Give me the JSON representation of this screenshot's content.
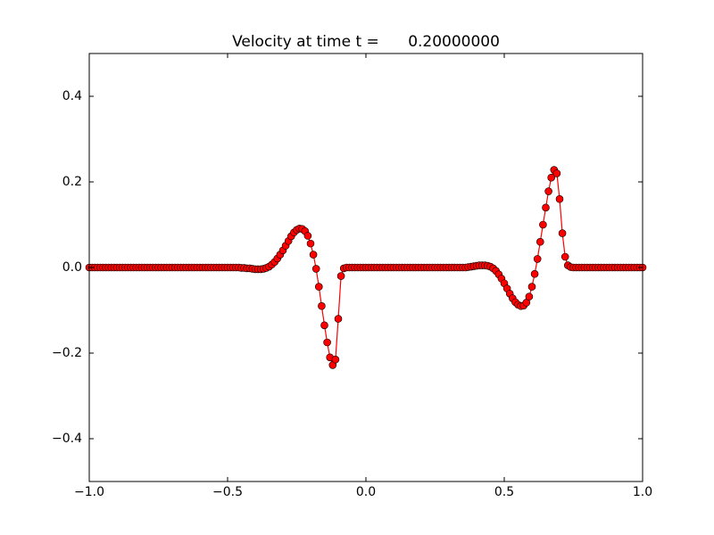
{
  "chart_data": {
    "type": "line",
    "title": "Velocity at time t =      0.20000000",
    "x": [
      -1,
      -0.99,
      -0.98,
      -0.97,
      -0.96,
      -0.95,
      -0.94,
      -0.93,
      -0.92,
      -0.91,
      -0.9,
      -0.89,
      -0.88,
      -0.87,
      -0.86,
      -0.85,
      -0.84,
      -0.83,
      -0.82,
      -0.81,
      -0.8,
      -0.79,
      -0.78,
      -0.77,
      -0.76,
      -0.75,
      -0.74,
      -0.73,
      -0.72,
      -0.71,
      -0.7,
      -0.69,
      -0.68,
      -0.67,
      -0.66,
      -0.65,
      -0.64,
      -0.63,
      -0.62,
      -0.61,
      -0.6,
      -0.59,
      -0.58,
      -0.57,
      -0.56,
      -0.55,
      -0.54,
      -0.53,
      -0.52,
      -0.51,
      -0.5,
      -0.49,
      -0.48,
      -0.47,
      -0.46,
      -0.45,
      -0.44,
      -0.43,
      -0.42,
      -0.41,
      -0.4,
      -0.39,
      -0.38,
      -0.37,
      -0.36,
      -0.35,
      -0.34,
      -0.33,
      -0.32,
      -0.31,
      -0.3,
      -0.29,
      -0.28,
      -0.27,
      -0.26,
      -0.25,
      -0.24,
      -0.23,
      -0.22,
      -0.21,
      -0.2,
      -0.19,
      -0.18,
      -0.17,
      -0.16,
      -0.15,
      -0.14,
      -0.13,
      -0.12,
      -0.11,
      -0.1,
      -0.09,
      -0.08,
      -0.07,
      -0.06,
      -0.05,
      -0.04,
      -0.03,
      -0.02,
      -0.01,
      0,
      0.01,
      0.02,
      0.03,
      0.04,
      0.05,
      0.06,
      0.07,
      0.08,
      0.09,
      0.1,
      0.11,
      0.12,
      0.13,
      0.14,
      0.15,
      0.16,
      0.17,
      0.18,
      0.19,
      0.2,
      0.21,
      0.22,
      0.23,
      0.24,
      0.25,
      0.26,
      0.27,
      0.28,
      0.29,
      0.3,
      0.31,
      0.32,
      0.33,
      0.34,
      0.35,
      0.36,
      0.37,
      0.38,
      0.39,
      0.4,
      0.41,
      0.42,
      0.43,
      0.44,
      0.45,
      0.46,
      0.47,
      0.48,
      0.49,
      0.5,
      0.51,
      0.52,
      0.53,
      0.54,
      0.55,
      0.56,
      0.57,
      0.58,
      0.59,
      0.6,
      0.61,
      0.62,
      0.63,
      0.64,
      0.65,
      0.66,
      0.67,
      0.68,
      0.69,
      0.7,
      0.71,
      0.72,
      0.73,
      0.74,
      0.75,
      0.76,
      0.77,
      0.78,
      0.79,
      0.8,
      0.81,
      0.82,
      0.83,
      0.84,
      0.85,
      0.86,
      0.87,
      0.88,
      0.89,
      0.9,
      0.91,
      0.92,
      0.93,
      0.94,
      0.95,
      0.96,
      0.97,
      0.98,
      0.99,
      1
    ],
    "values": [
      0,
      0,
      0,
      0,
      0,
      0,
      0,
      0,
      0,
      0,
      0,
      0,
      0,
      0,
      0,
      0,
      0,
      0,
      0,
      0,
      0,
      0,
      0,
      0,
      0,
      0,
      0,
      0,
      0,
      0,
      0,
      0,
      0,
      0,
      0,
      0,
      0,
      0,
      0,
      0,
      0,
      0,
      0,
      0,
      0,
      0,
      0,
      0,
      0,
      0,
      0,
      0,
      0,
      0,
      0,
      -0.001,
      -0.001,
      -0.002,
      -0.002,
      -0.003,
      -0.004,
      -0.004,
      -0.004,
      -0.003,
      -0.001,
      0.002,
      0.007,
      0.013,
      0.021,
      0.03,
      0.04,
      0.051,
      0.062,
      0.073,
      0.082,
      0.088,
      0.091,
      0.09,
      0.085,
      0.074,
      0.056,
      0.03,
      -0.003,
      -0.045,
      -0.09,
      -0.135,
      -0.175,
      -0.21,
      -0.228,
      -0.215,
      -0.12,
      -0.02,
      -0.002,
      0,
      0,
      0,
      0,
      0,
      0,
      0,
      0,
      0,
      0,
      0,
      0,
      0,
      0,
      0,
      0,
      0,
      0,
      0,
      0,
      0,
      0,
      0,
      0,
      0,
      0,
      0,
      0,
      0,
      0,
      0,
      0,
      0,
      0,
      0,
      0,
      0,
      0,
      0,
      0,
      0,
      0,
      0,
      0,
      0.001,
      0.002,
      0.003,
      0.004,
      0.005,
      0.005,
      0.005,
      0.004,
      0.002,
      -0.002,
      -0.008,
      -0.016,
      -0.026,
      -0.037,
      -0.049,
      -0.061,
      -0.072,
      -0.081,
      -0.087,
      -0.09,
      -0.089,
      -0.082,
      -0.068,
      -0.045,
      -0.015,
      0.02,
      0.06,
      0.1,
      0.14,
      0.178,
      0.21,
      0.228,
      0.22,
      0.16,
      0.08,
      0.025,
      0.005,
      0.001,
      0,
      0,
      0,
      0,
      0,
      0,
      0,
      0,
      0,
      0,
      0,
      0,
      0,
      0,
      0,
      0,
      0,
      0,
      0,
      0,
      0,
      0,
      0,
      0,
      0,
      0
    ],
    "color": "#ff0000",
    "marker_edge_color": "#000000",
    "xlim": [
      -1,
      1
    ],
    "xticks": [
      {
        "value": -1,
        "label": "−1.0"
      },
      {
        "value": -0.5,
        "label": "−0.5"
      },
      {
        "value": 0,
        "label": "0.0"
      },
      {
        "value": 0.5,
        "label": "0.5"
      },
      {
        "value": 1,
        "label": "1.0"
      }
    ],
    "ylim": [
      -0.5,
      0.5
    ],
    "yticks": [
      {
        "value": -0.4,
        "label": "−0.4"
      },
      {
        "value": -0.2,
        "label": "−0.2"
      },
      {
        "value": 0,
        "label": "0.0"
      },
      {
        "value": 0.2,
        "label": "0.2"
      },
      {
        "value": 0.4,
        "label": "0.4"
      }
    ],
    "grid": false
  }
}
